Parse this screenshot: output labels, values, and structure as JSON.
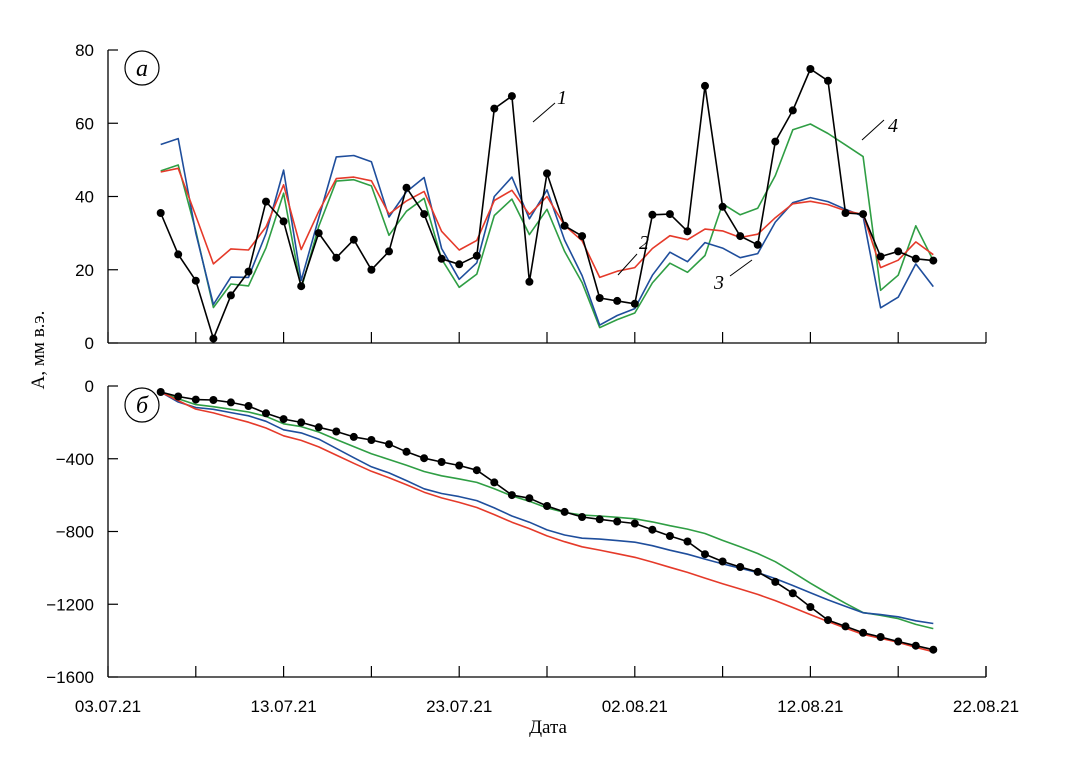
{
  "chart_data": [
    {
      "panel_label": "а",
      "type": "line",
      "ylim": [
        0,
        80
      ],
      "yticks": [
        0,
        20,
        40,
        60,
        80
      ],
      "ylabel": "A, мм в.э.",
      "series": [
        {
          "name": "1",
          "color": "#000000",
          "markers": true,
          "x": [
            3,
            4,
            5,
            6,
            7,
            8,
            9,
            10,
            11,
            12,
            13,
            14,
            15,
            16,
            17,
            18,
            19,
            20,
            21,
            22,
            23,
            24,
            25,
            26,
            27,
            28,
            29,
            30,
            31,
            32,
            33,
            34,
            35,
            36,
            37,
            38,
            39,
            40,
            41,
            42,
            43,
            44,
            45,
            46,
            47
          ],
          "y": [
            35.5,
            24.2,
            17,
            1.2,
            13,
            19.5,
            38.6,
            33.2,
            15.5,
            30,
            23.3,
            28.2,
            20,
            25,
            42.4,
            35.2,
            23,
            21.5,
            23.8,
            64,
            67.4,
            16.7,
            46.3,
            32,
            29.2,
            12.3,
            11.5,
            10.7,
            35,
            35.2,
            30.5,
            70.2,
            37.2,
            29.2,
            26.8,
            55,
            63.5,
            74.8,
            71.6,
            35.5,
            35.2,
            23.6,
            25,
            23,
            22.5
          ]
        },
        {
          "name": "2",
          "color": "#e53a2a",
          "markers": false,
          "x": [
            3,
            4,
            5,
            6,
            7,
            8,
            9,
            10,
            11,
            12,
            13,
            14,
            15,
            16,
            17,
            18,
            19,
            20,
            21,
            22,
            23,
            24,
            25,
            26,
            27,
            28,
            29,
            30,
            31,
            32,
            33,
            34,
            35,
            36,
            37,
            38,
            39,
            40,
            41,
            42,
            43,
            44,
            45,
            46,
            47
          ],
          "y": [
            46.7,
            47.7,
            34.7,
            21.6,
            25.7,
            25.4,
            31.7,
            43.2,
            25.5,
            35.9,
            44.9,
            45.3,
            44.3,
            35.2,
            38.8,
            41.4,
            30.5,
            25.4,
            28,
            38.9,
            41.7,
            35.1,
            40,
            32.1,
            27.9,
            17.9,
            19.6,
            20.6,
            25.8,
            29.3,
            28.2,
            31.1,
            30.6,
            28.8,
            29.7,
            34.2,
            38,
            38.7,
            37.8,
            36.1,
            35.1,
            20.6,
            22.6,
            27.6,
            24.1
          ]
        },
        {
          "name": "3",
          "color": "#1f4e9c",
          "markers": false,
          "x": [
            3,
            4,
            5,
            6,
            7,
            8,
            9,
            10,
            11,
            12,
            13,
            14,
            15,
            16,
            17,
            18,
            19,
            20,
            21,
            22,
            23,
            24,
            25,
            26,
            27,
            28,
            29,
            30,
            31,
            32,
            33,
            34,
            35,
            36,
            37,
            38,
            39,
            40,
            41,
            42,
            43,
            44,
            45,
            46,
            47
          ],
          "y": [
            54.2,
            55.8,
            30,
            10.5,
            18,
            17.9,
            29.9,
            47.2,
            17.1,
            34.1,
            50.8,
            51.2,
            49.5,
            34.4,
            41.3,
            45.2,
            25.8,
            17.4,
            21.9,
            40,
            45.3,
            33.9,
            41.8,
            28.1,
            18.4,
            4.9,
            7.5,
            9.4,
            18.5,
            24.8,
            22.2,
            27.4,
            25.9,
            23.3,
            24.4,
            33,
            38.3,
            39.7,
            38.6,
            36.5,
            34.6,
            9.6,
            12.5,
            21.6,
            15.4
          ]
        },
        {
          "name": "4",
          "color": "#2f9e44",
          "markers": false,
          "x": [
            3,
            4,
            5,
            6,
            7,
            8,
            9,
            10,
            11,
            12,
            13,
            14,
            15,
            16,
            17,
            18,
            19,
            20,
            21,
            22,
            23,
            24,
            25,
            26,
            27,
            28,
            29,
            30,
            31,
            32,
            33,
            34,
            35,
            36,
            37,
            38,
            39,
            40,
            41,
            42,
            43,
            44,
            45,
            46,
            47
          ],
          "y": [
            47,
            48.6,
            30.6,
            9.7,
            16.1,
            15.6,
            26,
            40.9,
            14.8,
            31.8,
            44.2,
            44.6,
            42.9,
            29.4,
            36,
            39.5,
            22.9,
            15.2,
            18.8,
            34.8,
            39.3,
            29.6,
            36.5,
            25,
            16.5,
            4.2,
            6.4,
            8.2,
            16.4,
            21.8,
            19.3,
            23.9,
            38,
            35,
            36.8,
            45.7,
            58.2,
            59.8,
            57.2,
            54.1,
            50.9,
            14.4,
            18.5,
            32,
            22.5
          ]
        }
      ]
    },
    {
      "panel_label": "б",
      "type": "line",
      "ylim": [
        -1600,
        0
      ],
      "yticks": [
        -1600,
        -1200,
        -800,
        -400,
        0
      ],
      "xlabel": "Дата",
      "x_tick_labels": [
        "03.07.21",
        "13.07.21",
        "23.07.21",
        "02.08.21",
        "12.08.21",
        "22.08.21"
      ],
      "series": [
        {
          "name": "1",
          "color": "#000000",
          "markers": true,
          "x": [
            3,
            4,
            5,
            6,
            7,
            8,
            9,
            10,
            11,
            12,
            13,
            14,
            15,
            16,
            17,
            18,
            19,
            20,
            21,
            22,
            23,
            24,
            25,
            26,
            27,
            28,
            29,
            30,
            31,
            32,
            33,
            34,
            35,
            36,
            37,
            38,
            39,
            40,
            41,
            42,
            43,
            44,
            45,
            46,
            47
          ],
          "y": [
            -33,
            -58,
            -75,
            -77,
            -90,
            -110,
            -150,
            -182,
            -200,
            -227,
            -250,
            -280,
            -297,
            -320,
            -362,
            -397,
            -418,
            -437,
            -463,
            -530,
            -600,
            -617,
            -660,
            -692,
            -720,
            -733,
            -745,
            -756,
            -790,
            -825,
            -855,
            -925,
            -965,
            -995,
            -1022,
            -1077,
            -1140,
            -1215,
            -1287,
            -1322,
            -1357,
            -1380,
            -1405,
            -1428,
            -1450
          ]
        },
        {
          "name": "2",
          "color": "#e53a2a",
          "markers": false,
          "x": [
            3,
            4,
            5,
            6,
            7,
            8,
            9,
            10,
            11,
            12,
            13,
            14,
            15,
            16,
            17,
            18,
            19,
            20,
            21,
            22,
            23,
            24,
            25,
            26,
            27,
            28,
            29,
            30,
            31,
            32,
            33,
            34,
            35,
            36,
            37,
            38,
            39,
            40,
            41,
            42,
            43,
            44,
            45,
            46,
            47
          ],
          "y": [
            -33,
            -80,
            -127,
            -148,
            -174,
            -199,
            -231,
            -274,
            -299,
            -335,
            -380,
            -425,
            -469,
            -504,
            -543,
            -584,
            -615,
            -640,
            -668,
            -707,
            -749,
            -784,
            -824,
            -856,
            -884,
            -902,
            -922,
            -942,
            -968,
            -997,
            -1025,
            -1056,
            -1087,
            -1116,
            -1146,
            -1180,
            -1218,
            -1257,
            -1295,
            -1331,
            -1366,
            -1387,
            -1409,
            -1437,
            -1461
          ]
        },
        {
          "name": "3",
          "color": "#1f4e9c",
          "markers": false,
          "x": [
            3,
            4,
            5,
            6,
            7,
            8,
            9,
            10,
            11,
            12,
            13,
            14,
            15,
            16,
            17,
            18,
            19,
            20,
            21,
            22,
            23,
            24,
            25,
            26,
            27,
            28,
            29,
            30,
            31,
            32,
            33,
            34,
            35,
            36,
            37,
            38,
            39,
            40,
            41,
            42,
            43,
            44,
            45,
            46,
            47
          ],
          "y": [
            -33,
            -88,
            -118,
            -128,
            -146,
            -164,
            -194,
            -241,
            -258,
            -292,
            -343,
            -394,
            -444,
            -478,
            -520,
            -565,
            -591,
            -608,
            -630,
            -670,
            -715,
            -749,
            -791,
            -819,
            -837,
            -842,
            -850,
            -859,
            -878,
            -903,
            -925,
            -952,
            -978,
            -1002,
            -1026,
            -1059,
            -1097,
            -1137,
            -1176,
            -1212,
            -1247,
            -1257,
            -1269,
            -1291,
            -1306
          ]
        },
        {
          "name": "4",
          "color": "#2f9e44",
          "markers": false,
          "x": [
            3,
            4,
            5,
            6,
            7,
            8,
            9,
            10,
            11,
            12,
            13,
            14,
            15,
            16,
            17,
            18,
            19,
            20,
            21,
            22,
            23,
            24,
            25,
            26,
            27,
            28,
            29,
            30,
            31,
            32,
            33,
            34,
            35,
            36,
            37,
            38,
            39,
            40,
            41,
            42,
            43,
            44,
            45,
            46,
            47
          ],
          "y": [
            -33,
            -70,
            -102,
            -114,
            -128,
            -143,
            -167,
            -208,
            -223,
            -253,
            -294,
            -333,
            -372,
            -404,
            -436,
            -470,
            -494,
            -511,
            -530,
            -565,
            -604,
            -634,
            -670,
            -695,
            -710,
            -715,
            -722,
            -730,
            -747,
            -768,
            -787,
            -811,
            -849,
            -884,
            -921,
            -966,
            -1024,
            -1084,
            -1141,
            -1195,
            -1246,
            -1261,
            -1279,
            -1311,
            -1334
          ]
        }
      ]
    }
  ],
  "annotations": {
    "panel_a": {
      "label_1": "1",
      "label_2": "2",
      "label_3": "3",
      "label_4": "4"
    }
  }
}
